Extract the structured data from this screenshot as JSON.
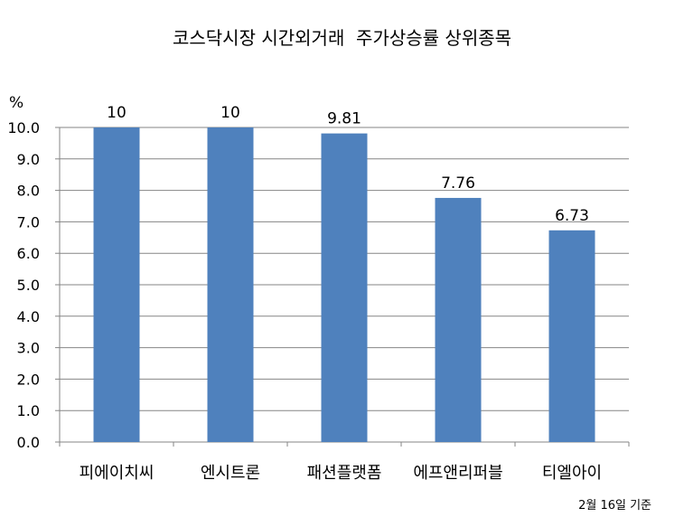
{
  "chart_data": {
    "type": "bar",
    "title": "코스닥시장 시간외거래  주가상승률 상위종목",
    "unit": "%",
    "note": "2월 16일 기준",
    "categories": [
      "피에이치씨",
      "엔시트론",
      "패션플랫폼",
      "에프앤리퍼블",
      "티엘아이"
    ],
    "values": [
      10,
      10,
      9.81,
      7.76,
      6.73
    ],
    "data_labels": [
      "10",
      "10",
      "9.81",
      "7.76",
      "6.73"
    ],
    "ylim": [
      0,
      10
    ],
    "yticks": [
      "0.0",
      "1.0",
      "2.0",
      "3.0",
      "4.0",
      "5.0",
      "6.0",
      "7.0",
      "8.0",
      "9.0",
      "10.0"
    ],
    "bar_color": "#4F81BD",
    "grid": true,
    "legend": "none"
  }
}
